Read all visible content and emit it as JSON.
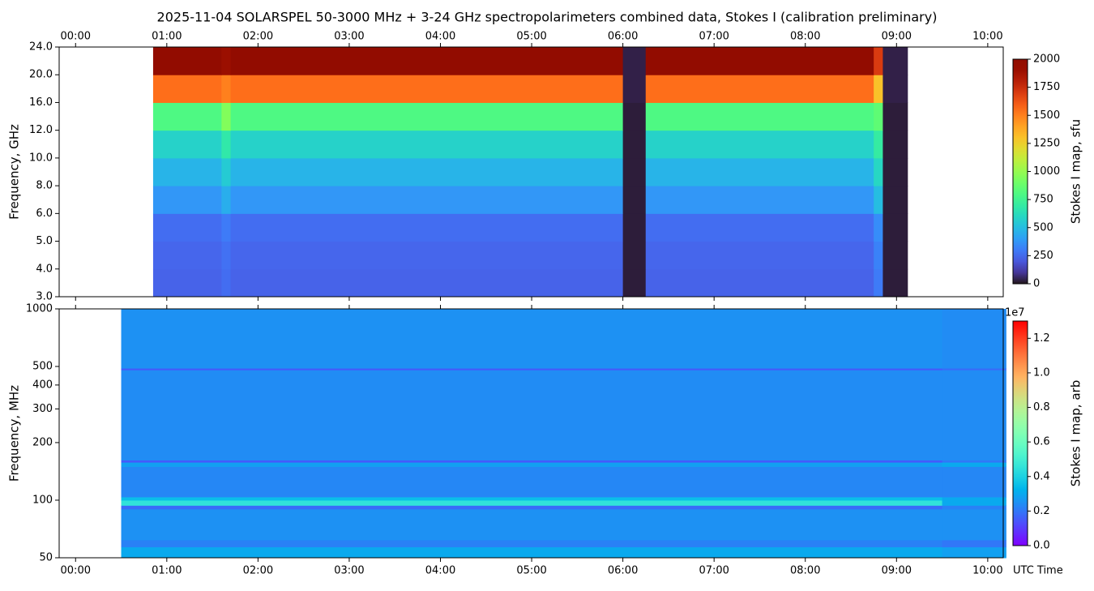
{
  "chart_data": [
    {
      "type": "heatmap",
      "title": "2025-11-04  SOLARSPEL  50-3000 MHz  +  3-24 GHz  spectropolarimeters combined data,  Stokes I  (calibration preliminary)",
      "ylabel": "Frequency, GHz",
      "xtick_side": "top",
      "xlim": [
        -0.18,
        10.17
      ],
      "xticks": [
        {
          "value": 0,
          "label": "00:00"
        },
        {
          "value": 1,
          "label": "01:00"
        },
        {
          "value": 2,
          "label": "02:00"
        },
        {
          "value": 3,
          "label": "03:00"
        },
        {
          "value": 4,
          "label": "04:00"
        },
        {
          "value": 5,
          "label": "05:00"
        },
        {
          "value": 6,
          "label": "06:00"
        },
        {
          "value": 7,
          "label": "07:00"
        },
        {
          "value": 8,
          "label": "08:00"
        },
        {
          "value": 9,
          "label": "09:00"
        },
        {
          "value": 10,
          "label": "10:00"
        }
      ],
      "yscale": "channel",
      "yticks": [
        {
          "value": 3,
          "label": "3.0"
        },
        {
          "value": 4,
          "label": "4.0"
        },
        {
          "value": 5,
          "label": "5.0"
        },
        {
          "value": 6,
          "label": "6.0"
        },
        {
          "value": 8,
          "label": "8.0"
        },
        {
          "value": 10,
          "label": "10.0"
        },
        {
          "value": 12,
          "label": "12.0"
        },
        {
          "value": 16,
          "label": "16.0"
        },
        {
          "value": 20,
          "label": "20.0"
        },
        {
          "value": 24,
          "label": "24.0"
        }
      ],
      "time_edges": [
        0.85,
        1.6,
        1.7,
        6.0,
        6.25,
        8.75,
        8.85,
        9.12
      ],
      "values": [
        [
          230,
          260,
          230,
          20,
          230,
          300,
          20
        ],
        [
          240,
          270,
          240,
          20,
          240,
          320,
          20
        ],
        [
          260,
          300,
          260,
          20,
          260,
          350,
          20
        ],
        [
          380,
          450,
          380,
          20,
          380,
          500,
          20
        ],
        [
          470,
          550,
          470,
          20,
          470,
          600,
          20
        ],
        [
          580,
          680,
          580,
          20,
          580,
          700,
          20
        ],
        [
          800,
          950,
          800,
          20,
          800,
          850,
          20
        ],
        [
          1550,
          1500,
          1550,
          30,
          1550,
          1300,
          30
        ],
        [
          1950,
          1900,
          1950,
          30,
          1950,
          1700,
          30
        ]
      ],
      "cmap": "turbo",
      "clim": [
        0,
        2000
      ],
      "cticks": [
        0,
        250,
        500,
        750,
        1000,
        1250,
        1500,
        1750,
        2000
      ],
      "clabel": "Stokes I map, sfu"
    },
    {
      "type": "heatmap",
      "ylabel": "Frequency, MHz",
      "xlabel": "UTC Time",
      "xtick_side": "bottom",
      "xlim": [
        -0.18,
        10.17
      ],
      "xticks": [
        {
          "value": 0,
          "label": "00:00"
        },
        {
          "value": 1,
          "label": "01:00"
        },
        {
          "value": 2,
          "label": "02:00"
        },
        {
          "value": 3,
          "label": "03:00"
        },
        {
          "value": 4,
          "label": "04:00"
        },
        {
          "value": 5,
          "label": "05:00"
        },
        {
          "value": 6,
          "label": "06:00"
        },
        {
          "value": 7,
          "label": "07:00"
        },
        {
          "value": 8,
          "label": "08:00"
        },
        {
          "value": 9,
          "label": "09:00"
        },
        {
          "value": 10,
          "label": "10:00"
        }
      ],
      "yscale": "log",
      "ylim": [
        50,
        1000
      ],
      "yticks": [
        50,
        100,
        200,
        300,
        400,
        500,
        1000
      ],
      "time_edges": [
        0.5,
        9.5,
        10.2
      ],
      "y_edges": [
        50,
        57,
        62,
        90,
        94,
        100,
        104,
        150,
        158,
        162,
        480,
        490,
        1000
      ],
      "values": [
        [
          3000000,
          2800000
        ],
        [
          2200000,
          2000000
        ],
        [
          2500000,
          2500000
        ],
        [
          1800000,
          2200000
        ],
        [
          4500000,
          3000000
        ],
        [
          3500000,
          3000000
        ],
        [
          2300000,
          2300000
        ],
        [
          2800000,
          3000000
        ],
        [
          1500000,
          2000000
        ],
        [
          2400000,
          2400000
        ],
        [
          1500000,
          1800000
        ],
        [
          2500000,
          2400000
        ]
      ],
      "cmap": "rainbow",
      "clim": [
        0,
        13000000
      ],
      "cticks": [
        {
          "value": 0,
          "label": "0.0"
        },
        {
          "value": 2000000,
          "label": "0.2"
        },
        {
          "value": 4000000,
          "label": "0.4"
        },
        {
          "value": 6000000,
          "label": "0.6"
        },
        {
          "value": 8000000,
          "label": "0.8"
        },
        {
          "value": 10000000,
          "label": "1.0"
        },
        {
          "value": 12000000,
          "label": "1.2"
        }
      ],
      "coffset": "1e7",
      "clabel": "Stokes I map, arb"
    }
  ]
}
